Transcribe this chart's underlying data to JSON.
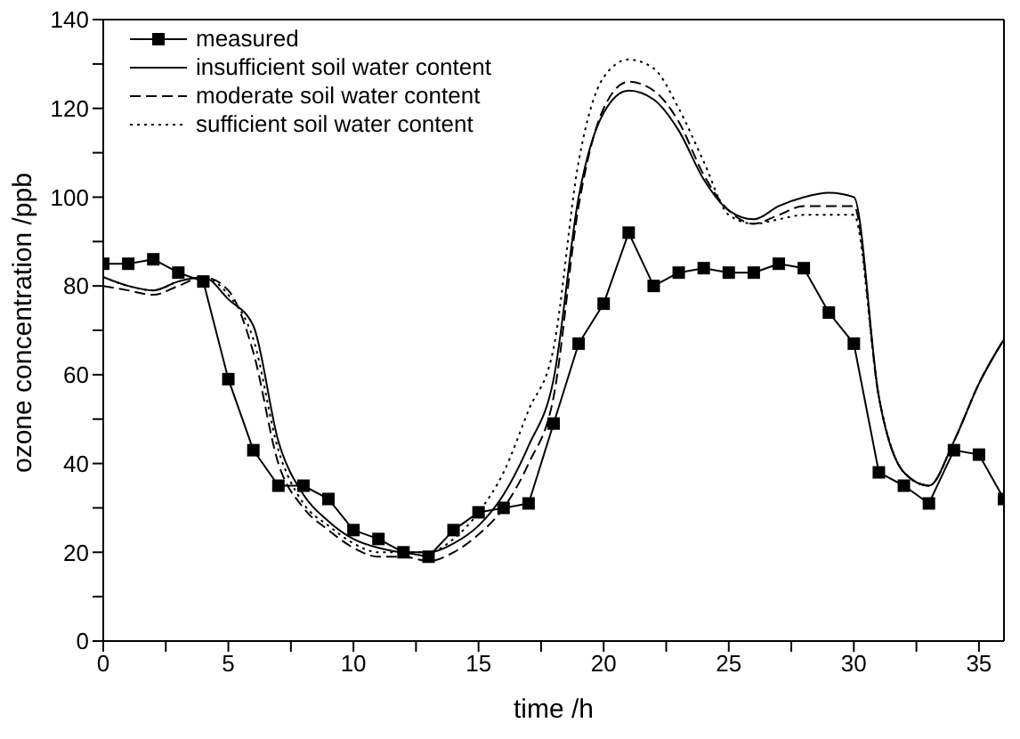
{
  "chart_data": {
    "type": "line",
    "xlabel": "time /h",
    "ylabel": "ozone concentration /ppb",
    "x": [
      0,
      1,
      2,
      3,
      4,
      5,
      6,
      7,
      8,
      9,
      10,
      11,
      12,
      13,
      14,
      15,
      16,
      17,
      18,
      19,
      20,
      21,
      22,
      23,
      24,
      25,
      26,
      27,
      28,
      29,
      30,
      31,
      32,
      33,
      34,
      35,
      36
    ],
    "series": [
      {
        "name": "measured",
        "color": "#000000",
        "marker": "square",
        "line_style": "solid",
        "values": [
          85,
          85,
          86,
          83,
          81,
          59,
          43,
          35,
          35,
          32,
          25,
          23,
          20,
          19,
          25,
          29,
          30,
          31,
          49,
          67,
          76,
          92,
          80,
          83,
          84,
          83,
          83,
          85,
          84,
          74,
          67,
          38,
          35,
          31,
          43,
          42,
          32
        ]
      },
      {
        "name": "insufficient soil water content",
        "color": "#000000",
        "marker": "none",
        "line_style": "solid",
        "values": [
          82,
          80,
          79,
          81,
          82,
          77,
          71,
          45,
          33,
          27,
          23,
          21,
          20,
          20,
          22,
          26,
          33,
          44,
          59,
          100,
          119,
          124,
          122,
          115,
          104,
          97,
          95,
          98,
          100,
          101,
          100,
          55,
          38,
          35,
          45,
          58,
          68
        ]
      },
      {
        "name": "moderate soil water content",
        "color": "#000000",
        "marker": "none",
        "line_style": "dashed",
        "values": [
          80,
          79,
          78,
          80,
          82,
          79,
          65,
          40,
          30,
          25,
          21,
          19,
          19,
          18,
          20,
          24,
          30,
          40,
          55,
          98,
          120,
          126,
          124,
          117,
          105,
          97,
          94,
          96,
          98,
          98,
          98,
          55,
          38,
          35,
          45,
          58,
          68
        ]
      },
      {
        "name": "sufficient soil water content",
        "color": "#000000",
        "marker": "none",
        "line_style": "dotted",
        "values": [
          82,
          80,
          79,
          81,
          82,
          78,
          68,
          43,
          31,
          26,
          22,
          20,
          20,
          20,
          23,
          29,
          38,
          52,
          66,
          108,
          127,
          131,
          129,
          120,
          108,
          96,
          94,
          95,
          96,
          96,
          96,
          55,
          38,
          35,
          45,
          58,
          68
        ]
      }
    ],
    "xlim": [
      0,
      36
    ],
    "xticks": [
      0,
      {
        "value": 2.5,
        "label": null
      },
      5,
      {
        "value": 7.5,
        "label": null
      },
      10,
      {
        "value": 12.5,
        "label": null
      },
      15,
      {
        "value": 17.5,
        "label": null
      },
      20,
      {
        "value": 22.5,
        "label": null
      },
      25,
      {
        "value": 27.5,
        "label": null
      },
      30,
      {
        "value": 32.5,
        "label": null
      },
      35
    ],
    "ylim": [
      0,
      140
    ],
    "yticks": [
      0,
      {
        "value": 10,
        "label": null
      },
      20,
      {
        "value": 30,
        "label": null
      },
      40,
      {
        "value": 50,
        "label": null
      },
      60,
      {
        "value": 70,
        "label": null
      },
      80,
      {
        "value": 90,
        "label": null
      },
      100,
      {
        "value": 110,
        "label": null
      },
      120,
      {
        "value": 130,
        "label": null
      },
      140
    ],
    "grid": false,
    "legend": "top left"
  }
}
